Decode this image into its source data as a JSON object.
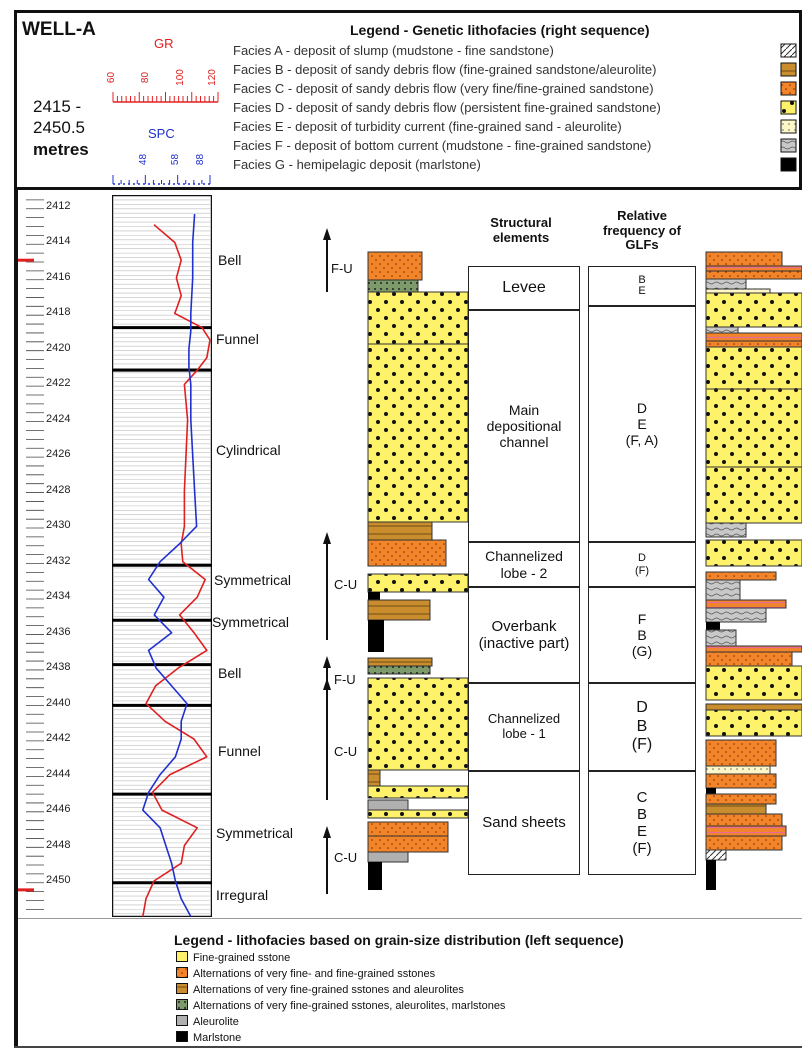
{
  "header": {
    "well": "WELL-A",
    "interval_line1": "2415 -",
    "interval_line2": "2450.5",
    "interval_line3": "metres",
    "gr_label": "GR",
    "gr_ticks": [
      "60",
      "80",
      "100",
      "120"
    ],
    "spc_label": "SPC",
    "spc_ticks": [
      "48",
      "58",
      "88"
    ]
  },
  "facies_legend": {
    "title": "Legend - Genetic lithofacies (right sequence)",
    "items": [
      "Facies A - deposit of slump (mudstone - fine sandstone)",
      "Facies B - deposit of sandy debris flow (fine-grained sandstone/aleurolite)",
      "Facies C - deposit of sandy debris flow (very fine/fine-grained sandstone)",
      "Facies D - deposit of sandy debris flow (persistent fine-grained sandstone)",
      "Facies E - deposit of turbidity current (fine-grained sand - aleurolite)",
      "Facies F - deposit of bottom current (mudstone - fine-grained sandstone)",
      "Facies G - hemipelagic deposit (marlstone)"
    ]
  },
  "depths": [
    "2412",
    "2414",
    "2416",
    "2418",
    "2420",
    "2422",
    "2424",
    "2426",
    "2428",
    "2430",
    "2432",
    "2434",
    "2436",
    "2438",
    "2440",
    "2442",
    "2444",
    "2446",
    "2448",
    "2450"
  ],
  "log_shapes": [
    "Bell",
    "Funnel",
    "Cylindrical",
    "Symmetrical",
    "Symmetrical",
    "Bell",
    "Funnel",
    "Symmetrical",
    "Irregural"
  ],
  "trends": [
    "F-U",
    "C-U",
    "F-U",
    "C-U",
    "C-U"
  ],
  "table_headers": {
    "structural": "Structural elements",
    "frequency": "Relative frequency of GLFs"
  },
  "elements": [
    {
      "name": "Levee",
      "freq": "B\nE"
    },
    {
      "name": "Main\ndepositional\nchannel",
      "freq": "D\nE\n(F, A)"
    },
    {
      "name": "Channelized\nlobe - 2",
      "freq": "D\n(F)"
    },
    {
      "name": "Overbank\n(inactive part)",
      "freq": "F\nB\n(G)"
    },
    {
      "name": "Channelized\nlobe - 1",
      "freq": "D\nB\n(F)"
    },
    {
      "name": "Sand sheets",
      "freq": "C\nB\nE\n(F)"
    }
  ],
  "grain_legend": {
    "title": "Legend - lithofacies based on grain-size distribution (left sequence)",
    "items": [
      "Fine-grained sstone",
      "Alternations of very fine- and fine-grained sstones",
      "Alternations of very fine-grained sstones and aleurolites",
      "Alternations of very fine-grained sstones, aleurolites, marlstones",
      "Aleurolite",
      "Marlstone"
    ]
  },
  "chart_data": {
    "type": "line",
    "x_unit": "depth (m)",
    "series": [
      {
        "name": "GR",
        "color": "#e02020",
        "x": [
          2413,
          2414,
          2415,
          2416,
          2417,
          2418,
          2418.8,
          2419.5,
          2420.5,
          2421.2,
          2422,
          2424,
          2426,
          2428,
          2430,
          2431,
          2432,
          2433,
          2434,
          2435,
          2436,
          2437,
          2438,
          2439,
          2440,
          2441,
          2442,
          2443,
          2444,
          2445,
          2446,
          2447,
          2448,
          2449,
          2450,
          2451,
          2452
        ],
        "y": [
          85,
          98,
          102,
          99,
          102,
          98,
          115,
          120,
          118,
          112,
          104,
          106,
          105,
          104,
          104,
          102,
          103,
          117,
          112,
          101,
          110,
          118,
          100,
          86,
          80,
          92,
          110,
          118,
          95,
          84,
          90,
          112,
          104,
          102,
          85,
          80,
          78
        ]
      },
      {
        "name": "SPC",
        "color": "#2030d0",
        "x": [
          2412.4,
          2414,
          2416,
          2418,
          2419,
          2420,
          2421,
          2422,
          2424,
          2426,
          2428,
          2430,
          2431,
          2432,
          2433,
          2434,
          2435,
          2436,
          2437,
          2438,
          2439,
          2440,
          2441,
          2442,
          2443,
          2444,
          2445,
          2446,
          2447,
          2448,
          2449,
          2450,
          2451,
          2452
        ],
        "y": [
          82,
          81,
          81,
          80,
          80,
          79,
          79,
          80,
          80,
          81,
          82,
          83,
          74,
          64,
          58,
          66,
          61,
          70,
          58,
          62,
          70,
          78,
          75,
          75,
          72,
          64,
          58,
          55,
          64,
          67,
          70,
          72,
          75,
          80
        ]
      }
    ]
  },
  "colors": {
    "fine_sstone": "#fdf26a",
    "alt_fine": "#f2842a",
    "alt_aleur": "#c98d2e",
    "alt_marl": "#7d9a6a",
    "aleurolite": "#b0b0b0",
    "marlstone": "#000000",
    "gr": "#e02020",
    "spc": "#2030d0"
  }
}
